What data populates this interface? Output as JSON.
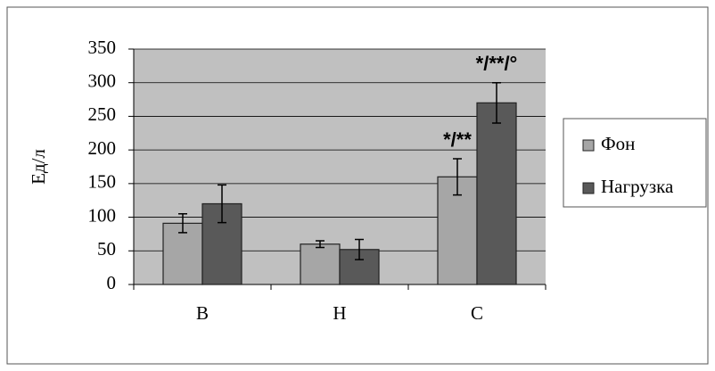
{
  "chart_data": {
    "type": "bar",
    "y_label": "Ед/л",
    "categories": [
      "B",
      "H",
      "C"
    ],
    "series": [
      {
        "name": "Фон",
        "color": "#a6a6a6",
        "values": [
          91,
          60,
          160
        ],
        "errors": [
          14,
          5,
          27
        ],
        "annotations": [
          null,
          null,
          "*/**"
        ]
      },
      {
        "name": "Нагрузка",
        "color": "#595959",
        "values": [
          120,
          52,
          270
        ],
        "errors": [
          28,
          15,
          30
        ],
        "annotations": [
          null,
          null,
          "*/**/°"
        ]
      }
    ],
    "ylim": [
      0,
      350
    ],
    "yticks": [
      0,
      50,
      100,
      150,
      200,
      250,
      300,
      350
    ],
    "grid": true,
    "legend": "right"
  }
}
